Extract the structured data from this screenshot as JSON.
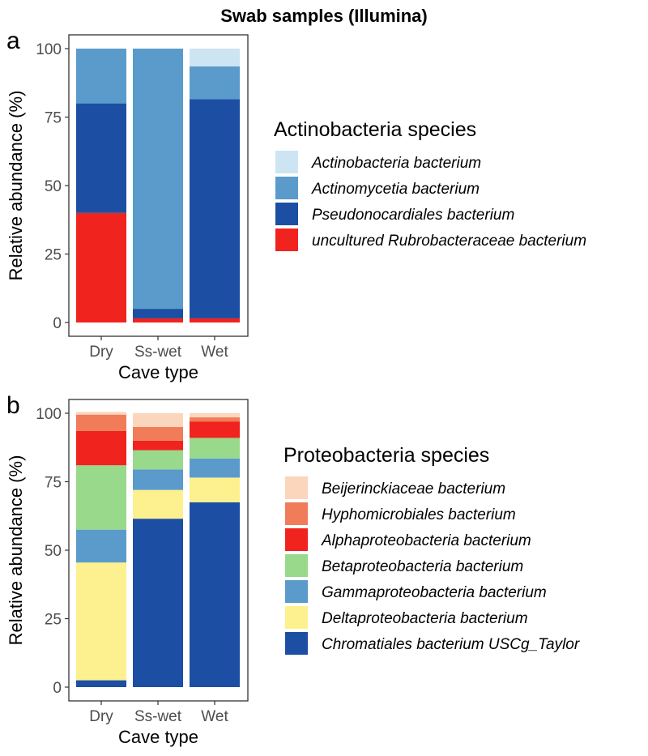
{
  "figure_title": "Swab samples (Illumina)",
  "chart_data": [
    {
      "type": "bar",
      "stacked": true,
      "panel_label": "a",
      "categories": [
        "Dry",
        "Ss-wet",
        "Wet"
      ],
      "xlabel": "Cave type",
      "ylabel": "Relative abundance (%)",
      "ylim": [
        0,
        100
      ],
      "yticks": [
        0,
        25,
        50,
        75,
        100
      ],
      "legend_title": "Actinobacteria species",
      "series": [
        {
          "name": "uncultured Rubrobacteraceae bacterium",
          "color": "#f0231e",
          "values": [
            40,
            1.5,
            1.5
          ]
        },
        {
          "name": "Pseudonocardiales bacterium",
          "color": "#1c4fa3",
          "values": [
            40,
            3.5,
            80
          ]
        },
        {
          "name": "Actinomycetia bacterium",
          "color": "#5a9bcb",
          "values": [
            20,
            95,
            12
          ]
        },
        {
          "name": "Actinobacteria bacterium",
          "color": "#cde4f2",
          "values": [
            0,
            0,
            6.5
          ]
        }
      ],
      "legend_order": [
        "Actinobacteria bacterium",
        "Actinomycetia bacterium",
        "Pseudonocardiales bacterium",
        "uncultured Rubrobacteraceae bacterium"
      ]
    },
    {
      "type": "bar",
      "stacked": true,
      "panel_label": "b",
      "categories": [
        "Dry",
        "Ss-wet",
        "Wet"
      ],
      "xlabel": "Cave type",
      "ylabel": "Relative abundance (%)",
      "ylim": [
        0,
        100
      ],
      "yticks": [
        0,
        25,
        50,
        75,
        100
      ],
      "legend_title": "Proteobacteria species",
      "series": [
        {
          "name": "Chromatiales bacterium USCg_Taylor",
          "color": "#1c4fa3",
          "values": [
            2.5,
            61.5,
            67.5
          ]
        },
        {
          "name": "Deltaproteobacteria bacterium",
          "color": "#fdf08f",
          "values": [
            43,
            10.5,
            9
          ]
        },
        {
          "name": "Gammaproteobacteria bacterium",
          "color": "#5a9bcb",
          "values": [
            12,
            7.5,
            7
          ]
        },
        {
          "name": "Betaproteobacteria bacterium",
          "color": "#98d98c",
          "values": [
            23.5,
            7,
            7.5
          ]
        },
        {
          "name": "Alphaproteobacteria bacterium",
          "color": "#f0231e",
          "values": [
            12.5,
            3.5,
            6
          ]
        },
        {
          "name": "Hyphomicrobiales bacterium",
          "color": "#f07c5a",
          "values": [
            6,
            5,
            1.5
          ]
        },
        {
          "name": "Beijerinckiaceae bacterium",
          "color": "#fcd5bd",
          "values": [
            1,
            5,
            1.5
          ]
        }
      ],
      "legend_order": [
        "Beijerinckiaceae bacterium",
        "Hyphomicrobiales bacterium",
        "Alphaproteobacteria bacterium",
        "Betaproteobacteria bacterium",
        "Gammaproteobacteria bacterium",
        "Deltaproteobacteria bacterium",
        "Chromatiales bacterium USCg_Taylor"
      ]
    }
  ]
}
